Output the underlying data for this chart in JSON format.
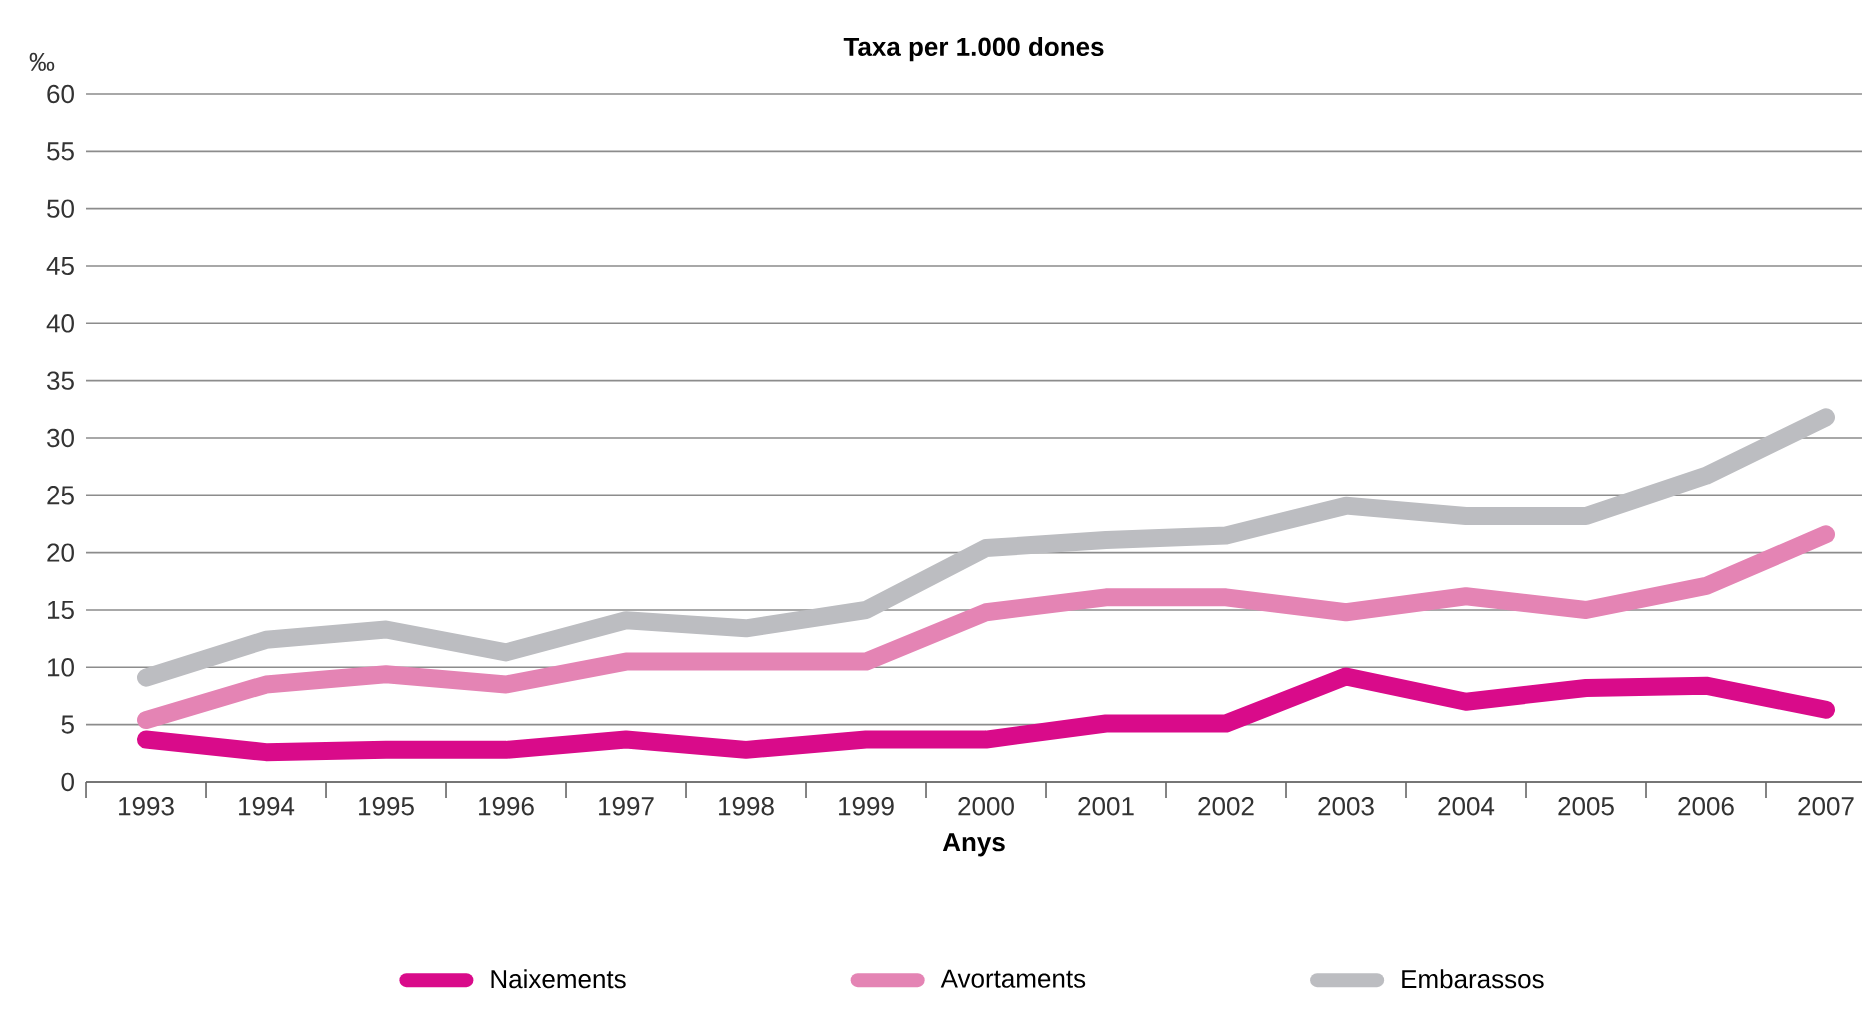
{
  "chart_data": {
    "type": "line",
    "title": "Taxa per 1.000 dones",
    "xlabel": "Anys",
    "ylabel": "‰",
    "categories": [
      "1993",
      "1994",
      "1995",
      "1996",
      "1997",
      "1998",
      "1999",
      "2000",
      "2001",
      "2002",
      "2003",
      "2004",
      "2005",
      "2006",
      "2007"
    ],
    "series": [
      {
        "name": "Naixements",
        "color": "#d90b8a",
        "values": [
          3.7,
          2.6,
          2.8,
          2.8,
          3.7,
          2.8,
          3.7,
          3.7,
          5.1,
          5.1,
          9.2,
          7.0,
          8.2,
          8.4,
          6.3
        ]
      },
      {
        "name": "Avortaments",
        "color": "#e484b4",
        "values": [
          5.4,
          8.5,
          9.4,
          8.5,
          10.5,
          10.5,
          10.5,
          14.8,
          16.1,
          16.1,
          14.8,
          16.2,
          15.0,
          17.1,
          21.6
        ]
      },
      {
        "name": "Embarassos",
        "color": "#bcbdc1",
        "values": [
          9.1,
          12.4,
          13.3,
          11.3,
          14.1,
          13.4,
          15.0,
          20.4,
          21.1,
          21.5,
          24.1,
          23.2,
          23.2,
          26.7,
          31.8
        ]
      }
    ],
    "ylim": [
      0,
      60
    ],
    "yticks": [
      0,
      5,
      10,
      15,
      20,
      25,
      30,
      35,
      40,
      45,
      50,
      55,
      60
    ],
    "grid": "y",
    "legend": "bottom",
    "marker": "none",
    "line_style": "solid"
  }
}
